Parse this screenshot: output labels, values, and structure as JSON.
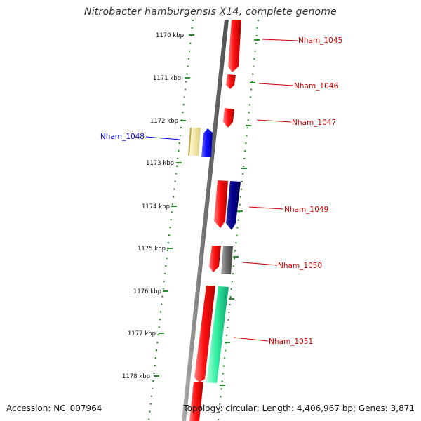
{
  "title": "Nitrobacter hamburgensis X14, complete genome",
  "footer": {
    "accession": "Accession: NC_007964",
    "summary": "Topology: circular; Length: 4,406,967 bp; Genes: 3,871"
  },
  "ruler": {
    "color": "#2e8b2e",
    "ticks": [
      "1170 kbp",
      "1171 kbp",
      "1172 kbp",
      "1173 kbp",
      "1174 kbp",
      "1175 kbp",
      "1176 kbp",
      "1177 kbp",
      "1178 kbp"
    ]
  },
  "genes": [
    {
      "label": "Nham_1045",
      "color": "#cc0000",
      "side": "right"
    },
    {
      "label": "Nham_1046",
      "color": "#cc0000",
      "side": "right"
    },
    {
      "label": "Nham_1047",
      "color": "#cc0000",
      "side": "right"
    },
    {
      "label": "Nham_1048",
      "color": "#0000cc",
      "side": "left"
    },
    {
      "label": "Nham_1049",
      "color": "#cc0000",
      "side": "right"
    },
    {
      "label": "Nham_1050",
      "color": "#cc0000",
      "side": "right"
    },
    {
      "label": "Nham_1051",
      "color": "#cc0000",
      "side": "right"
    }
  ],
  "feature_colors": {
    "backbone": "#7a7a7a",
    "red": "#ee1111",
    "blue": "#1111ee",
    "navy": "#000080",
    "gray": "#666666",
    "green": "#22e89a",
    "tan": "#f0e6a8"
  }
}
